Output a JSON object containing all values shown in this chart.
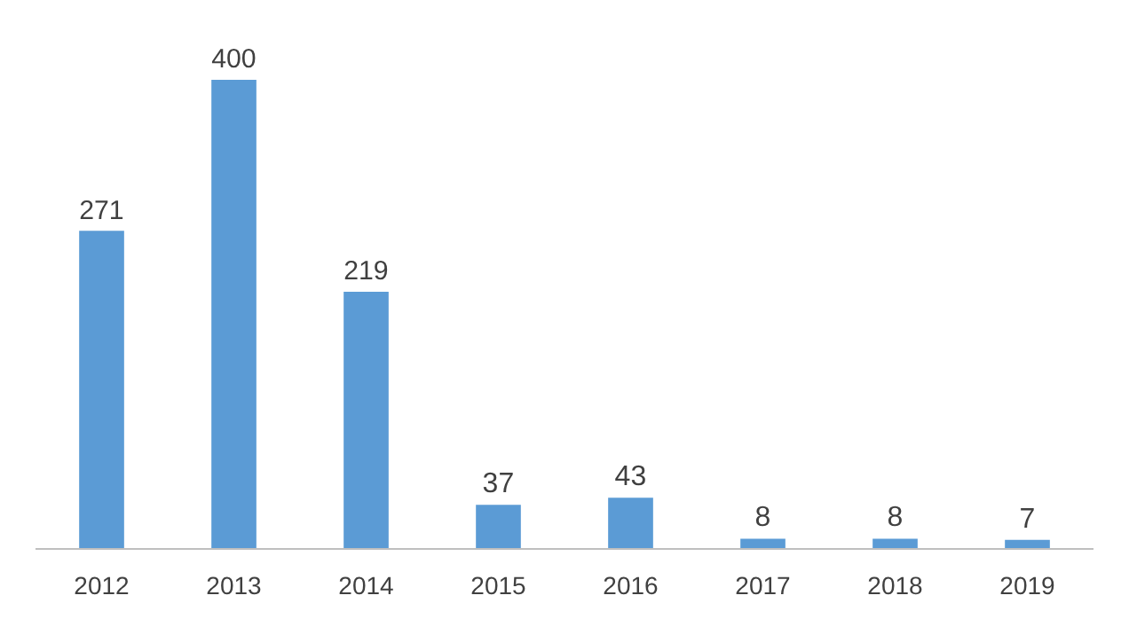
{
  "chart_data": {
    "type": "bar",
    "categories": [
      "2012",
      "2013",
      "2014",
      "2015",
      "2016",
      "2017",
      "2018",
      "2019"
    ],
    "values": [
      271,
      400,
      219,
      37,
      43,
      8,
      8,
      7
    ],
    "color": "#5b9bd5",
    "data_labels": true
  }
}
